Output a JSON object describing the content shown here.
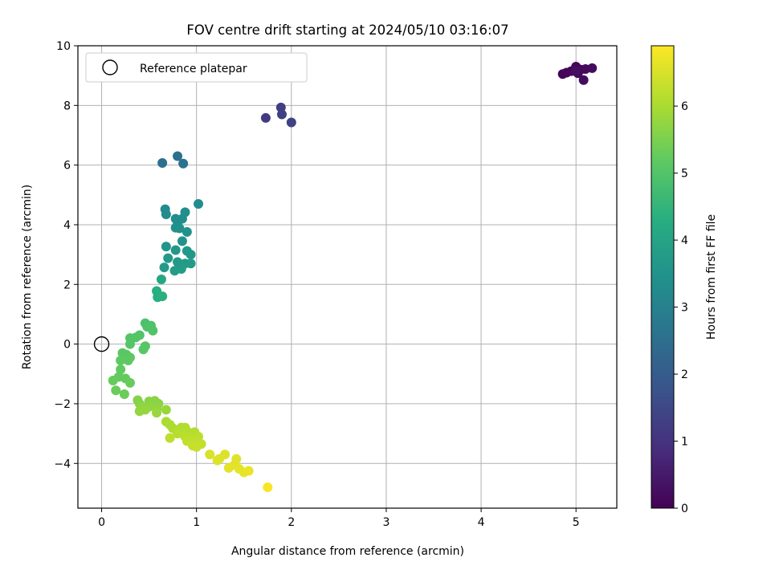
{
  "chart_data": {
    "type": "scatter",
    "title": "FOV centre drift starting at 2024/05/10 03:16:07",
    "xlabel": "Angular distance from reference (arcmin)",
    "ylabel": "Rotation from reference (arcmin)",
    "xlim": [
      -0.25,
      5.43
    ],
    "ylim": [
      -5.5,
      10
    ],
    "xticks": [
      0,
      1,
      2,
      3,
      4,
      5
    ],
    "yticks": [
      -4,
      -2,
      0,
      2,
      4,
      6,
      8,
      10
    ],
    "grid": true,
    "legend": {
      "position": "top-left",
      "entries": [
        "Reference platepar"
      ]
    },
    "reference_point": {
      "x": 0,
      "y": 0
    },
    "colorbar": {
      "label": "Hours from first FF file",
      "range": [
        0,
        6.9
      ],
      "ticks": [
        0,
        1,
        2,
        3,
        4,
        5,
        6
      ],
      "colormap": "viridis"
    },
    "points": [
      {
        "x": 4.86,
        "y": 9.05,
        "c": 0.05
      },
      {
        "x": 4.9,
        "y": 9.1,
        "c": 0.08
      },
      {
        "x": 4.95,
        "y": 9.15,
        "c": 0.1
      },
      {
        "x": 5.0,
        "y": 9.3,
        "c": 0.12
      },
      {
        "x": 5.02,
        "y": 9.08,
        "c": 0.14
      },
      {
        "x": 5.05,
        "y": 9.2,
        "c": 0.16
      },
      {
        "x": 5.1,
        "y": 9.22,
        "c": 0.18
      },
      {
        "x": 5.08,
        "y": 8.85,
        "c": 0.2
      },
      {
        "x": 5.17,
        "y": 9.25,
        "c": 0.22
      },
      {
        "x": 5.0,
        "y": 9.15,
        "c": 0.25
      },
      {
        "x": 1.73,
        "y": 7.58,
        "c": 1.2
      },
      {
        "x": 1.89,
        "y": 7.93,
        "c": 1.25
      },
      {
        "x": 1.9,
        "y": 7.7,
        "c": 1.3
      },
      {
        "x": 2.0,
        "y": 7.43,
        "c": 1.35
      },
      {
        "x": 0.64,
        "y": 6.07,
        "c": 2.5
      },
      {
        "x": 0.8,
        "y": 6.3,
        "c": 2.55
      },
      {
        "x": 0.86,
        "y": 6.05,
        "c": 2.6
      },
      {
        "x": 0.67,
        "y": 4.52,
        "c": 3.3
      },
      {
        "x": 0.68,
        "y": 4.35,
        "c": 3.32
      },
      {
        "x": 0.78,
        "y": 4.2,
        "c": 3.34
      },
      {
        "x": 0.8,
        "y": 4.0,
        "c": 3.36
      },
      {
        "x": 0.85,
        "y": 4.2,
        "c": 3.38
      },
      {
        "x": 0.88,
        "y": 4.42,
        "c": 3.4
      },
      {
        "x": 0.78,
        "y": 3.9,
        "c": 3.42
      },
      {
        "x": 0.82,
        "y": 3.88,
        "c": 3.44
      },
      {
        "x": 0.9,
        "y": 3.76,
        "c": 3.46
      },
      {
        "x": 1.02,
        "y": 4.7,
        "c": 3.3
      },
      {
        "x": 0.85,
        "y": 3.45,
        "c": 3.5
      },
      {
        "x": 0.68,
        "y": 3.27,
        "c": 3.6
      },
      {
        "x": 0.78,
        "y": 3.15,
        "c": 3.62
      },
      {
        "x": 0.9,
        "y": 3.12,
        "c": 3.64
      },
      {
        "x": 0.94,
        "y": 3.0,
        "c": 3.66
      },
      {
        "x": 0.7,
        "y": 2.88,
        "c": 3.68
      },
      {
        "x": 0.8,
        "y": 2.75,
        "c": 3.7
      },
      {
        "x": 0.88,
        "y": 2.7,
        "c": 3.72
      },
      {
        "x": 0.94,
        "y": 2.7,
        "c": 3.74
      },
      {
        "x": 0.66,
        "y": 2.57,
        "c": 3.76
      },
      {
        "x": 0.77,
        "y": 2.46,
        "c": 3.78
      },
      {
        "x": 0.84,
        "y": 2.52,
        "c": 3.8
      },
      {
        "x": 0.63,
        "y": 2.17,
        "c": 4.1
      },
      {
        "x": 0.58,
        "y": 1.78,
        "c": 4.3
      },
      {
        "x": 0.59,
        "y": 1.57,
        "c": 4.32
      },
      {
        "x": 0.64,
        "y": 1.6,
        "c": 4.34
      },
      {
        "x": 0.46,
        "y": 0.7,
        "c": 4.9
      },
      {
        "x": 0.48,
        "y": 0.58,
        "c": 4.92
      },
      {
        "x": 0.52,
        "y": 0.62,
        "c": 4.94
      },
      {
        "x": 0.54,
        "y": 0.45,
        "c": 4.96
      },
      {
        "x": 0.4,
        "y": 0.3,
        "c": 4.98
      },
      {
        "x": 0.3,
        "y": 0.2,
        "c": 5.0
      },
      {
        "x": 0.36,
        "y": 0.22,
        "c": 5.02
      },
      {
        "x": 0.3,
        "y": 0.0,
        "c": 5.04
      },
      {
        "x": 0.46,
        "y": -0.07,
        "c": 5.06
      },
      {
        "x": 0.44,
        "y": -0.18,
        "c": 5.08
      },
      {
        "x": 0.22,
        "y": -0.3,
        "c": 5.1
      },
      {
        "x": 0.26,
        "y": -0.35,
        "c": 5.12
      },
      {
        "x": 0.3,
        "y": -0.45,
        "c": 5.14
      },
      {
        "x": 0.2,
        "y": -0.55,
        "c": 5.16
      },
      {
        "x": 0.28,
        "y": -0.55,
        "c": 5.18
      },
      {
        "x": 0.2,
        "y": -0.85,
        "c": 5.2
      },
      {
        "x": 0.18,
        "y": -1.1,
        "c": 5.22
      },
      {
        "x": 0.25,
        "y": -1.15,
        "c": 5.24
      },
      {
        "x": 0.12,
        "y": -1.22,
        "c": 5.26
      },
      {
        "x": 0.3,
        "y": -1.3,
        "c": 5.28
      },
      {
        "x": 0.15,
        "y": -1.55,
        "c": 5.3
      },
      {
        "x": 0.24,
        "y": -1.68,
        "c": 5.32
      },
      {
        "x": 0.38,
        "y": -1.88,
        "c": 5.6
      },
      {
        "x": 0.4,
        "y": -2.0,
        "c": 5.62
      },
      {
        "x": 0.5,
        "y": -1.92,
        "c": 5.64
      },
      {
        "x": 0.56,
        "y": -1.9,
        "c": 5.66
      },
      {
        "x": 0.6,
        "y": -2.0,
        "c": 5.68
      },
      {
        "x": 0.42,
        "y": -2.12,
        "c": 5.7
      },
      {
        "x": 0.5,
        "y": -2.1,
        "c": 5.72
      },
      {
        "x": 0.58,
        "y": -2.18,
        "c": 5.74
      },
      {
        "x": 0.4,
        "y": -2.25,
        "c": 5.76
      },
      {
        "x": 0.46,
        "y": -2.2,
        "c": 5.78
      },
      {
        "x": 0.68,
        "y": -2.2,
        "c": 5.8
      },
      {
        "x": 0.58,
        "y": -2.3,
        "c": 5.82
      },
      {
        "x": 0.68,
        "y": -2.6,
        "c": 6.0
      },
      {
        "x": 0.72,
        "y": -2.7,
        "c": 6.02
      },
      {
        "x": 0.75,
        "y": -2.82,
        "c": 6.04
      },
      {
        "x": 0.84,
        "y": -2.8,
        "c": 6.06
      },
      {
        "x": 0.88,
        "y": -2.8,
        "c": 6.08
      },
      {
        "x": 0.9,
        "y": -2.92,
        "c": 6.1
      },
      {
        "x": 0.98,
        "y": -2.95,
        "c": 6.12
      },
      {
        "x": 0.8,
        "y": -3.0,
        "c": 6.14
      },
      {
        "x": 0.88,
        "y": -3.1,
        "c": 6.16
      },
      {
        "x": 0.94,
        "y": -3.15,
        "c": 6.18
      },
      {
        "x": 1.02,
        "y": -3.1,
        "c": 6.2
      },
      {
        "x": 0.72,
        "y": -3.15,
        "c": 6.22
      },
      {
        "x": 0.9,
        "y": -3.25,
        "c": 6.24
      },
      {
        "x": 0.98,
        "y": -3.3,
        "c": 6.26
      },
      {
        "x": 1.05,
        "y": -3.35,
        "c": 6.28
      },
      {
        "x": 0.96,
        "y": -3.4,
        "c": 6.3
      },
      {
        "x": 1.0,
        "y": -3.45,
        "c": 6.32
      },
      {
        "x": 1.14,
        "y": -3.7,
        "c": 6.5
      },
      {
        "x": 1.24,
        "y": -3.85,
        "c": 6.52
      },
      {
        "x": 1.3,
        "y": -3.7,
        "c": 6.54
      },
      {
        "x": 1.22,
        "y": -3.9,
        "c": 6.56
      },
      {
        "x": 1.42,
        "y": -3.85,
        "c": 6.58
      },
      {
        "x": 1.4,
        "y": -4.05,
        "c": 6.6
      },
      {
        "x": 1.34,
        "y": -4.15,
        "c": 6.62
      },
      {
        "x": 1.45,
        "y": -4.18,
        "c": 6.64
      },
      {
        "x": 1.5,
        "y": -4.3,
        "c": 6.66
      },
      {
        "x": 1.55,
        "y": -4.25,
        "c": 6.68
      },
      {
        "x": 1.75,
        "y": -4.8,
        "c": 6.85
      }
    ]
  }
}
